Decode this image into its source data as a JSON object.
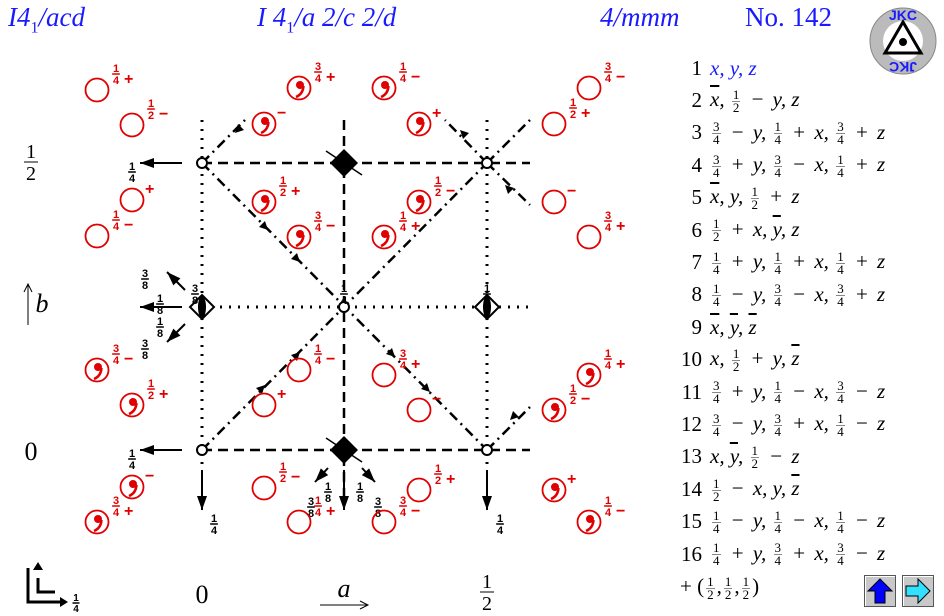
{
  "header": {
    "short_symbol": "I4",
    "short_sub": "1",
    "short_rest": "/acd",
    "full_symbol_a": "I 4",
    "full_sub": "1",
    "full_rest": "/a 2/c 2/d",
    "point_group": "4/mmm",
    "number": "No. 142"
  },
  "logo": {
    "text": "JKC"
  },
  "colors": {
    "accent": "#1a1aff",
    "positions": "#e00000",
    "symbols": "#000000"
  },
  "axes": {
    "left_top": "1/2",
    "left_bottom": "0",
    "b_label": "b",
    "bottom_left": "0",
    "a_label": "a",
    "bottom_right": "1/2",
    "corner_height": "1/4"
  },
  "positions": [
    {
      "height": "1/4",
      "sign": "+",
      "type": "open"
    },
    {
      "height": "1/2",
      "sign": "−",
      "type": "open"
    },
    {
      "height": "",
      "sign": "+",
      "type": "open"
    },
    {
      "height": "1/4",
      "sign": "−",
      "type": "open"
    },
    {
      "height": "3/4",
      "sign": "−",
      "type": "comma"
    },
    {
      "height": "1/2",
      "sign": "+",
      "type": "comma"
    },
    {
      "height": "",
      "sign": "−",
      "type": "comma"
    },
    {
      "height": "3/4",
      "sign": "+",
      "type": "comma"
    },
    {
      "height": "3/4",
      "sign": "+",
      "type": "comma"
    },
    {
      "height": "",
      "sign": "−",
      "type": "comma"
    },
    {
      "height": "1/2",
      "sign": "+",
      "type": "comma"
    },
    {
      "height": "3/4",
      "sign": "−",
      "type": "comma"
    },
    {
      "height": "1/4",
      "sign": "−",
      "type": "comma"
    },
    {
      "height": "",
      "sign": "+",
      "type": "comma"
    },
    {
      "height": "1/2",
      "sign": "−",
      "type": "comma"
    },
    {
      "height": "1/4",
      "sign": "+",
      "type": "comma"
    },
    {
      "height": "3/4",
      "sign": "−",
      "type": "open"
    },
    {
      "height": "1/2",
      "sign": "+",
      "type": "open"
    },
    {
      "height": "",
      "sign": "−",
      "type": "open"
    },
    {
      "height": "3/4",
      "sign": "+",
      "type": "open"
    },
    {
      "height": "1/4",
      "sign": "−",
      "type": "open"
    },
    {
      "height": "",
      "sign": "+",
      "type": "open"
    },
    {
      "height": "1/2",
      "sign": "−",
      "type": "open"
    },
    {
      "height": "1/4",
      "sign": "+",
      "type": "open"
    },
    {
      "height": "3/4",
      "sign": "+",
      "type": "open"
    },
    {
      "height": "",
      "sign": "−",
      "type": "open"
    },
    {
      "height": "1/2",
      "sign": "+",
      "type": "open"
    },
    {
      "height": "3/4",
      "sign": "−",
      "type": "open"
    },
    {
      "height": "1/4",
      "sign": "+",
      "type": "comma"
    },
    {
      "height": "1/2",
      "sign": "−",
      "type": "comma"
    },
    {
      "height": "",
      "sign": "+",
      "type": "comma"
    },
    {
      "height": "1/4",
      "sign": "−",
      "type": "comma"
    }
  ],
  "symbol_labels": [
    "1/4",
    "1/4",
    "1/4",
    "1/4",
    "3/8",
    "1/8",
    "1/4",
    "3/8",
    "1/8",
    "1/8",
    "3/8",
    "1/8",
    "3/8",
    "1/8",
    "3/8"
  ],
  "coordinates": [
    {
      "n": "1",
      "expr": "x, y, z"
    },
    {
      "n": "2",
      "expr": "x̅, 1/2 − y, z"
    },
    {
      "n": "3",
      "expr": "3/4 − y, 1/4 + x, 3/4 + z"
    },
    {
      "n": "4",
      "expr": "3/4 + y, 3/4 − x, 1/4 + z"
    },
    {
      "n": "5",
      "expr": "x̅, y, 1/2 + z"
    },
    {
      "n": "6",
      "expr": "1/2 + x, y̅, z"
    },
    {
      "n": "7",
      "expr": "1/4 + y, 1/4 + x, 1/4 + z"
    },
    {
      "n": "8",
      "expr": "1/4 − y, 3/4 − x, 3/4 + z"
    },
    {
      "n": "9",
      "expr": "x̅, y̅, z̅"
    },
    {
      "n": "10",
      "expr": "x, 1/2 + y, z̅"
    },
    {
      "n": "11",
      "expr": "3/4 + y, 1/4 − x, 3/4 − z"
    },
    {
      "n": "12",
      "expr": "3/4 − y, 3/4 + x, 1/4 − z"
    },
    {
      "n": "13",
      "expr": "x, y̅, 1/2 − z"
    },
    {
      "n": "14",
      "expr": "1/2 − x, y, z̅"
    },
    {
      "n": "15",
      "expr": "1/4 − y, 1/4 − x, 1/4 − z"
    },
    {
      "n": "16",
      "expr": "1/4 + y, 3/4 + x, 3/4 − z"
    }
  ],
  "centering": "+ (1/2,1/2,1/2)",
  "nav": {
    "up": "up-arrow-icon",
    "next": "right-arrow-icon"
  }
}
